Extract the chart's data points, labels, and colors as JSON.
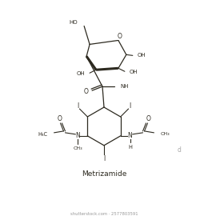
{
  "title": "Metrizamide",
  "background_color": "#ffffff",
  "bond_color": "#2d2a20",
  "text_color": "#2d2a20",
  "figsize": [
    2.6,
    2.8
  ],
  "dpi": 100,
  "watermark": "d",
  "shutterstock": "shutterstock.com · 2577803591"
}
